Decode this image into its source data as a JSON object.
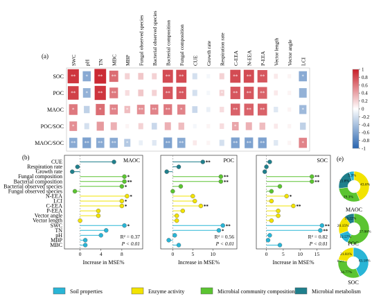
{
  "chart_data": [
    {
      "panel": "(a)",
      "type": "heatmap",
      "columns": [
        "SWC",
        "pH",
        "TN",
        "MBC",
        "MBP",
        "Fungal observed species",
        "Bacterial observed species",
        "Bacterial composition",
        "Fungal composition",
        "CUE",
        "Growth rate",
        "Respiration rate",
        "C-EEA",
        "N-EEA",
        "P-EEA",
        "Vector length",
        "Vector angle",
        "LCI"
      ],
      "rows": [
        "SOC",
        "POC",
        "MAOC",
        "POC/SOC",
        "MAOC/SOC"
      ],
      "values": [
        [
          0.9,
          -0.55,
          0.95,
          0.65,
          0.2,
          0.25,
          0.2,
          0.8,
          0.8,
          -0.2,
          -0.05,
          0.2,
          0.8,
          0.8,
          0.75,
          0.1,
          0.05,
          -0.55
        ],
        [
          0.85,
          -0.5,
          0.9,
          0.6,
          0.15,
          0.25,
          0.2,
          0.75,
          0.75,
          -0.2,
          -0.05,
          0.2,
          0.75,
          0.75,
          0.7,
          0.1,
          0.05,
          -0.5
        ],
        [
          0.6,
          -0.3,
          0.65,
          0.55,
          0.3,
          0.5,
          0.55,
          0.6,
          0.55,
          -0.25,
          -0.1,
          0.15,
          0.7,
          0.7,
          0.7,
          -0.15,
          0.05,
          -0.45
        ],
        [
          0.5,
          -0.2,
          0.45,
          0.35,
          0.05,
          0.2,
          -0.25,
          0.35,
          0.3,
          -0.05,
          0.05,
          0.15,
          0.4,
          0.35,
          0.3,
          0.1,
          0.05,
          -0.3
        ],
        [
          -0.55,
          -0.6,
          -0.55,
          -0.55,
          -0.35,
          -0.1,
          -0.15,
          -0.6,
          -0.55,
          0.1,
          0.05,
          -0.2,
          -0.6,
          -0.6,
          -0.6,
          -0.15,
          0.05,
          0.55
        ]
      ],
      "significance": [
        [
          "**",
          "*",
          "**",
          "**",
          "",
          "",
          "",
          "**",
          "**",
          "",
          "",
          "",
          "**",
          "**",
          "**",
          "",
          "",
          "*"
        ],
        [
          "**",
          "*",
          "**",
          "**",
          "",
          "",
          "",
          "**",
          "**",
          "",
          "",
          "*",
          "**",
          "**",
          "**",
          "",
          "",
          ""
        ],
        [
          "*",
          "",
          "*",
          "**",
          "*",
          "**",
          "**",
          "**",
          "*",
          "",
          "",
          "",
          "**",
          "**",
          "**",
          "",
          "",
          "*"
        ],
        [
          "*",
          "",
          "",
          "",
          "",
          "",
          "",
          "",
          "",
          "",
          "",
          "",
          "*",
          "",
          "",
          "",
          "",
          ""
        ],
        [
          "**",
          "**",
          "**",
          "**",
          "*",
          "",
          "",
          "**",
          "**",
          "",
          "",
          "",
          "**",
          "**",
          "**",
          "",
          "",
          "*"
        ]
      ],
      "legend_ticks": [
        "1",
        "0.8",
        "0.6",
        "0.4",
        "0.2",
        "0",
        "-0.2",
        "-0.4",
        "-0.6",
        "-0.8",
        "-1"
      ],
      "colors": {
        "positive": "#d7262e",
        "negative": "#2b6cb0"
      }
    },
    {
      "panel": "(b)",
      "type": "lollipop",
      "predictors": [
        "CUE",
        "Respiration rate",
        "Growth rate",
        "Fungal composition",
        "Bacterial composition",
        "Bacterial observed species",
        "Fungal observed species",
        "N-EEA",
        "LCI",
        "C-EEA",
        "P-EEA",
        "Vector angle",
        "Vector length",
        "SWC",
        "TN",
        "pH",
        "MBP",
        "MBC"
      ],
      "groups": [
        "Microbial metabolism",
        "Microbial metabolism",
        "Microbial metabolism",
        "Microbial community compositions",
        "Microbial community compositions",
        "Microbial community compositions",
        "Microbial community compositions",
        "Enzyme activity",
        "Enzyme activity",
        "Enzyme activity",
        "Enzyme activity",
        "Enzyme activity",
        "Enzyme activity",
        "Soil properties",
        "Soil properties",
        "Soil properties",
        "Soil properties",
        "Soil properties"
      ],
      "xlabel": "Increase in MSE%",
      "panels": [
        {
          "title": "MAOC",
          "values": [
            6.5,
            -0.5,
            -1.5,
            8.5,
            8.5,
            8.0,
            -1.0,
            9.0,
            8.0,
            8.0,
            3.5,
            3.5,
            0.0,
            8.5,
            5.0,
            4.0,
            1.0,
            1.0
          ],
          "sig": [
            "",
            "",
            "",
            "*",
            "**",
            "*",
            "",
            "*",
            "*",
            "*",
            "",
            "",
            "",
            "*",
            "",
            "",
            "",
            ""
          ],
          "xticks": [
            "0",
            "4",
            "8"
          ],
          "xlim": [
            -3,
            12
          ],
          "r2": "R² = 0.37",
          "p": "P < 0.01"
        },
        {
          "title": "POC",
          "values": [
            7.5,
            1.5,
            -1.5,
            12.0,
            12.0,
            2.0,
            0.0,
            5.0,
            5.5,
            7.0,
            2.5,
            1.0,
            1.0,
            12.5,
            11.5,
            0.5,
            -1.0,
            1.5
          ],
          "sig": [
            "**",
            "",
            "",
            "**",
            "**",
            "",
            "",
            "",
            "",
            "**",
            "",
            "",
            "",
            "**",
            "*",
            "",
            "",
            ""
          ],
          "xticks": [
            "0",
            "5",
            "10"
          ],
          "xlim": [
            -3,
            16
          ],
          "r2": "R² = 0.56",
          "p": "P < 0.01"
        },
        {
          "title": "SOC",
          "values": [
            1.0,
            0.0,
            -0.5,
            13.5,
            13.5,
            4.0,
            1.5,
            6.0,
            1.5,
            8.0,
            3.5,
            3.5,
            1.5,
            16.5,
            16.0,
            1.0,
            0.5,
            4.0
          ],
          "sig": [
            "",
            "",
            "",
            "**",
            "**",
            "",
            "",
            "*",
            "",
            "**",
            "",
            "",
            "",
            "**",
            "**",
            "",
            "",
            ""
          ],
          "xticks": [
            "0",
            "5",
            "10",
            "15"
          ],
          "xlim": [
            -3,
            19
          ],
          "r2": "R² = 0.82",
          "p": "P < 0.01"
        }
      ],
      "colors": {
        "Soil properties": "#29b5d6",
        "Enzyme activity": "#f2e300",
        "Microbial community compositions": "#5bc431",
        "Microbial metabolism": "#1f7f8c"
      }
    },
    {
      "panel": "(e)",
      "type": "pie",
      "charts": [
        {
          "title": "",
          "slices": [
            {
              "group": "Enzyme activity",
              "value": 43.6,
              "label": "43.6%"
            },
            {
              "group": "Microbial community compositions",
              "value": 29.3,
              "label": "29.3%"
            },
            {
              "group": "Microbial metabolism",
              "value": 21.8,
              "label": "21.8%"
            },
            {
              "group": "Soil properties",
              "value": 5.3,
              "label": "5.3%"
            }
          ]
        },
        {
          "title": "MAOC",
          "slices": [
            {
              "group": "Microbial community compositions",
              "value": 57.06,
              "label": "57.06%"
            },
            {
              "group": "Soil properties",
              "value": 12.57,
              "label": "12.57%"
            },
            {
              "group": "Enzyme activity",
              "value": 20.15,
              "label": "20.15%"
            },
            {
              "group": "Microbial metabolism",
              "value": 10.22,
              "label": "10.22%"
            }
          ]
        },
        {
          "title": "POC",
          "slices": [
            {
              "group": "Soil properties",
              "value": 43.18,
              "label": "43.18%"
            },
            {
              "group": "Microbial community compositions",
              "value": 34.77,
              "label": "34.77%"
            },
            {
              "group": "Microbial metabolism",
              "value": 0.23,
              "label": "0.23%"
            },
            {
              "group": "Enzyme activity",
              "value": 21.81,
              "label": "21.81%"
            }
          ]
        }
      ],
      "bottom_label": "SOC"
    }
  ],
  "labels": {
    "panel_a": "(a)",
    "panel_b": "(b)",
    "panel_e": "(e)"
  },
  "legend": [
    {
      "label": "Soil properties",
      "color": "#29b5d6"
    },
    {
      "label": "Enzyme activity",
      "color": "#f2e300"
    },
    {
      "label": "Microbial community compositions",
      "color": "#5bc431"
    },
    {
      "label": "Microbial metabolism",
      "color": "#1f7f8c"
    }
  ]
}
